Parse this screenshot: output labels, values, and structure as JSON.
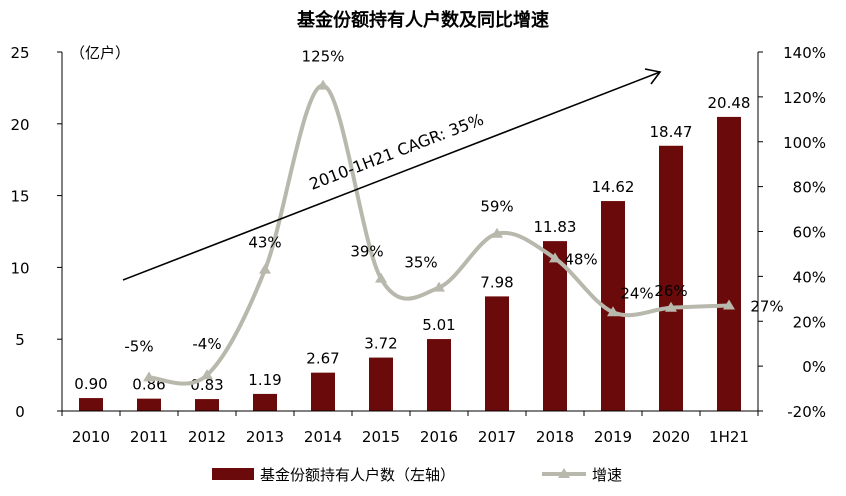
{
  "chart_data": {
    "type": "bar",
    "title": "基金份额持有人户数及同比增速",
    "categories": [
      "2010",
      "2011",
      "2012",
      "2013",
      "2014",
      "2015",
      "2016",
      "2017",
      "2018",
      "2019",
      "2020",
      "1H21"
    ],
    "series": [
      {
        "name": "基金份额持有人户数（左轴）",
        "type": "bar",
        "axis": "left",
        "color": "#6b0a0a",
        "values": [
          0.9,
          0.86,
          0.83,
          1.19,
          2.67,
          3.72,
          5.01,
          7.98,
          11.83,
          14.62,
          18.47,
          20.48
        ],
        "labels": [
          "0.90",
          "0.86",
          "0.83",
          "1.19",
          "2.67",
          "3.72",
          "5.01",
          "7.98",
          "11.83",
          "14.62",
          "18.47",
          "20.48"
        ]
      },
      {
        "name": "增速",
        "type": "line",
        "axis": "right",
        "color": "#b9b8ad",
        "values": [
          null,
          -5,
          -4,
          43,
          125,
          39,
          35,
          59,
          48,
          24,
          26,
          27
        ],
        "labels": [
          "",
          "-5%",
          "-4%",
          "43%",
          "125%",
          "39%",
          "35%",
          "59%",
          "48%",
          "24%",
          "26%",
          "27%"
        ]
      }
    ],
    "y_left": {
      "unit_label": "（亿户）",
      "range": [
        0,
        25
      ],
      "ticks": [
        "0",
        "5",
        "10",
        "15",
        "20",
        "25"
      ]
    },
    "y_right": {
      "range": [
        -20,
        140
      ],
      "ticks": [
        "-20%",
        "0%",
        "20%",
        "40%",
        "60%",
        "80%",
        "100%",
        "120%",
        "140%"
      ]
    },
    "annotation": "2010-1H21 CAGR: 35%",
    "grid": false,
    "legend_position": "bottom"
  }
}
